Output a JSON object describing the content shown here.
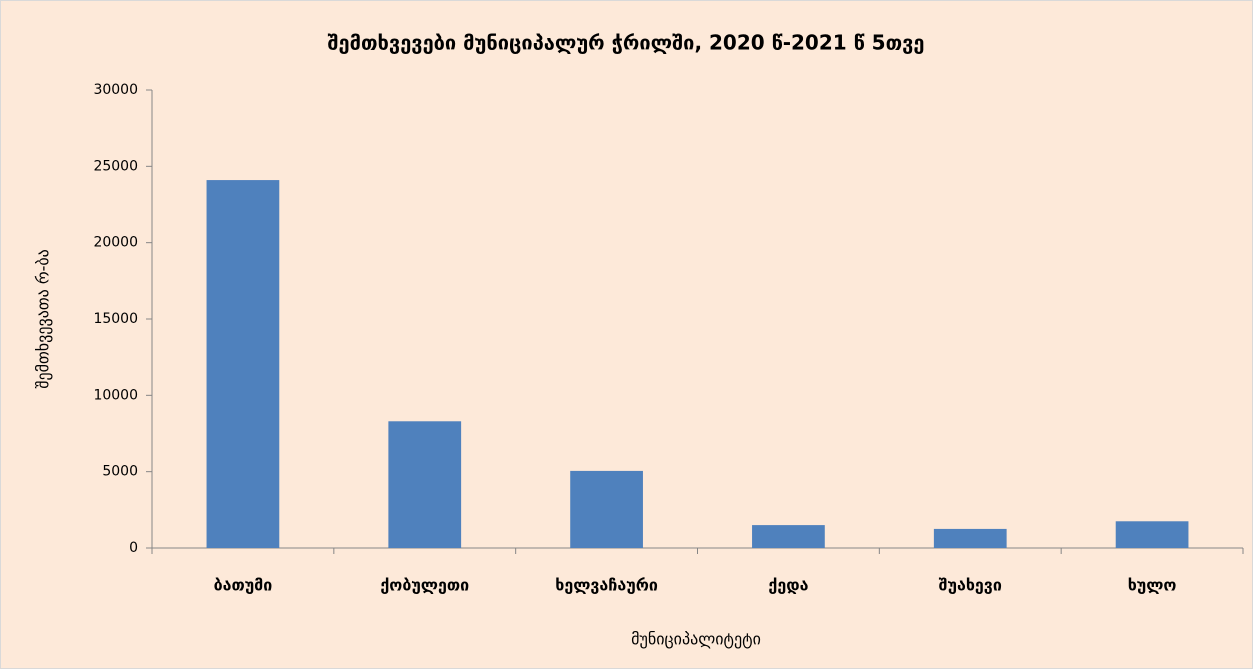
{
  "chart_data": {
    "type": "bar",
    "title": "შემთხვევები მუნიციპალურ ჭრილში, 2020 წ-2021 წ 5თვე",
    "x_label": "მუნიციპალიტეტი",
    "y_label": "შემთხვევათა რ-ბა",
    "categories": [
      "ბათუმი",
      "ქობულეთი",
      "ხელვაჩაური",
      "ქედა",
      "შუახევი",
      "ხულო"
    ],
    "values": [
      24100,
      8300,
      5050,
      1500,
      1250,
      1750
    ],
    "color": "#4f81bd",
    "ylim": [
      0,
      30000
    ],
    "yticks": [
      0,
      5000,
      10000,
      15000,
      20000,
      25000,
      30000
    ],
    "grid": false
  }
}
